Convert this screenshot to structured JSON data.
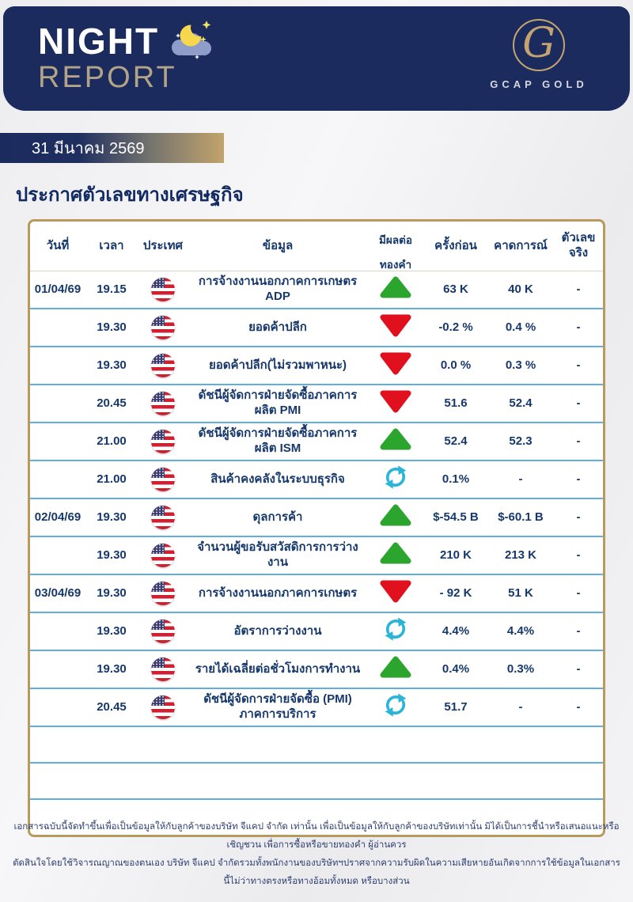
{
  "header": {
    "title_line1": "NIGHT",
    "title_line2": "REPORT",
    "moon_icon": "moon-cloud-icon",
    "logo_letter": "G",
    "logo_text": "GCAP GOLD"
  },
  "date_banner": "31 มีนาคม  2569",
  "section_title": "ประกาศตัวเลขทางเศรษฐกิจ",
  "table": {
    "columns": [
      {
        "label": "วันที่"
      },
      {
        "label": "เวลา"
      },
      {
        "label": "ประเทศ"
      },
      {
        "label": "ข้อมูล"
      },
      {
        "label": "มีผลต่อ",
        "label2": "ทองคำ"
      },
      {
        "label": "ครั้งก่อน"
      },
      {
        "label": "คาดการณ์"
      },
      {
        "label": "ตัวเลขจริง"
      }
    ],
    "rows": [
      {
        "date": "01/04/69",
        "time": "19.15",
        "country": "us-flag-icon",
        "item": "การจ้างงานนอกภาคการเกษตร ADP",
        "effect": "up",
        "previous": "63 K",
        "forecast": "40 K",
        "actual": "-"
      },
      {
        "date": "",
        "time": "19.30",
        "country": "us-flag-icon",
        "item": "ยอดค้าปลีก",
        "effect": "down",
        "previous": "-0.2 %",
        "forecast": "0.4 %",
        "actual": "-"
      },
      {
        "date": "",
        "time": "19.30",
        "country": "us-flag-icon",
        "item": "ยอดค้าปลีก(ไม่รวมพาหนะ)",
        "effect": "down",
        "previous": "0.0 %",
        "forecast": "0.3 %",
        "actual": "-"
      },
      {
        "date": "",
        "time": "20.45",
        "country": "us-flag-icon",
        "item": "ดัชนีผู้จัดการฝ่ายจัดซื้อภาคการผลิต PMI",
        "effect": "down",
        "previous": "51.6",
        "forecast": "52.4",
        "actual": "-"
      },
      {
        "date": "",
        "time": "21.00",
        "country": "us-flag-icon",
        "item": "ดัชนีผู้จัดการฝ่ายจัดซื้อภาคการผลิต ISM",
        "effect": "up",
        "previous": "52.4",
        "forecast": "52.3",
        "actual": "-"
      },
      {
        "date": "",
        "time": "21.00",
        "country": "us-flag-icon",
        "item": "สินค้าคงคลังในระบบธุรกิจ",
        "effect": "neutral",
        "previous": "0.1%",
        "forecast": "-",
        "actual": "-"
      },
      {
        "date": "02/04/69",
        "time": "19.30",
        "country": "us-flag-icon",
        "item": "ดุลการค้า",
        "effect": "up",
        "previous": "$-54.5 B",
        "forecast": "$-60.1 B",
        "actual": "-"
      },
      {
        "date": "",
        "time": "19.30",
        "country": "us-flag-icon",
        "item": "จำนวนผู้ขอรับสวัสดิการการว่างงาน",
        "effect": "up",
        "previous": "210 K",
        "forecast": "213 K",
        "actual": "-"
      },
      {
        "date": "03/04/69",
        "time": "19.30",
        "country": "us-flag-icon",
        "item": "การจ้างงานนอกภาคการเกษตร",
        "effect": "down",
        "previous": "- 92 K",
        "forecast": "51 K",
        "actual": "-"
      },
      {
        "date": "",
        "time": "19.30",
        "country": "us-flag-icon",
        "item": "อัตราการว่างงาน",
        "effect": "neutral",
        "previous": "4.4%",
        "forecast": "4.4%",
        "actual": "-"
      },
      {
        "date": "",
        "time": "19.30",
        "country": "us-flag-icon",
        "item": "รายได้เฉลี่ยต่อชั่วโมงการทำงาน",
        "effect": "up",
        "previous": "0.4%",
        "forecast": "0.3%",
        "actual": "-"
      },
      {
        "date": "",
        "time": "20.45",
        "country": "us-flag-icon",
        "item": "ดัชนีผู้จัดการฝ่ายจัดซื้อ (PMI)\nภาคการบริการ",
        "effect": "neutral",
        "previous": "51.7",
        "forecast": "-",
        "actual": "-"
      }
    ],
    "empty_rows": 2
  },
  "footer": {
    "line1": "เอกสารฉบับนี้จัดทำขึ้นเพื่อเป็นข้อมูลให้กับลูกค้าของบริษัท จีแคป จำกัด เท่านั้น เพื่อเป็นข้อมูลให้กับลูกค้าของบริษัทเท่านั้น มิได้เป็นการชี้นำหรือเสนอแนะหรือเชิญชวน เพื่อการซื้อหรือขายทองคำ ผู้อ่านควร",
    "line2": "ตัดสินใจโดยใช้วิจารณญาณของตนเอง บริษัท จีแคป จำกัดรวมทั้งพนักงานของบริษัทฯปราศจากความรับผิดในความเสียหายอันเกิดจากการใช้ข้อมูลในเอกสารนี้ไม่ว่าทางตรงหรือทางอ้อมทั้งหมด หรือบางส่วน"
  },
  "icons": {
    "up": "up-arrow-icon",
    "down": "down-arrow-icon",
    "neutral": "refresh-icon",
    "country": "us-flag-icon"
  },
  "colors": {
    "navy": "#1b2b5e",
    "text_navy": "#16386b",
    "gold_border": "#b9995c",
    "gold_accent": "#c3a470",
    "divider_blue": "#5fb0df",
    "green_up": "#2ba52e",
    "red_down": "#e0101e",
    "cyan_neutral": "#29b4d8"
  }
}
